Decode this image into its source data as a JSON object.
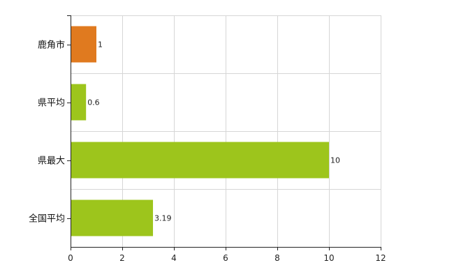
{
  "chart_data": {
    "type": "bar",
    "orientation": "horizontal",
    "categories": [
      "鹿角市",
      "県平均",
      "県最大",
      "全国平均"
    ],
    "values": [
      1,
      0.6,
      10,
      3.19
    ],
    "value_labels": [
      "1",
      "0.6",
      "10",
      "3.19"
    ],
    "bar_colors": [
      "#e07a1f",
      "#9dc51c",
      "#9dc51c",
      "#9dc51c"
    ],
    "xlim": [
      0,
      12
    ],
    "x_ticks": [
      0,
      2,
      4,
      6,
      8,
      10,
      12
    ],
    "x_tick_labels": [
      "0",
      "2",
      "4",
      "6",
      "8",
      "10",
      "12"
    ],
    "grid": true,
    "title": "",
    "xlabel": "",
    "ylabel": ""
  }
}
